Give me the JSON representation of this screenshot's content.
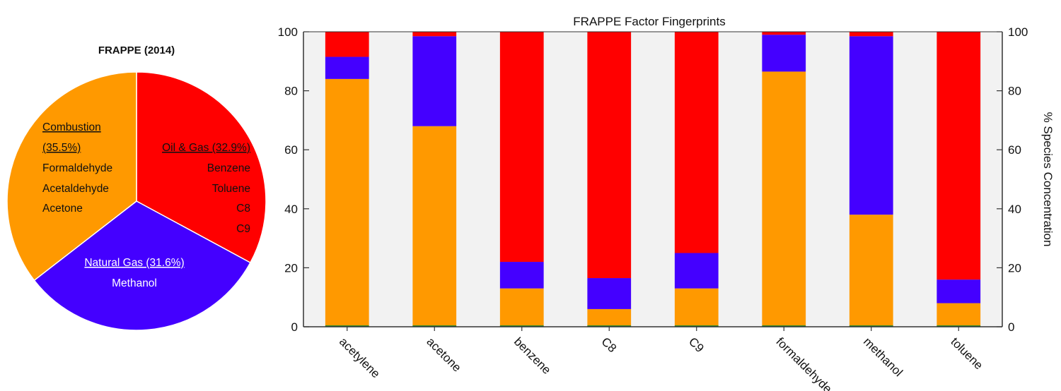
{
  "chart_data": [
    {
      "type": "pie",
      "title": "FRAPPE (2014)",
      "slices": [
        {
          "name": "Oil & Gas (32.9%)",
          "value": 32.9,
          "color": "#ff0000",
          "species": [
            "Benzene",
            "Toluene",
            "C8",
            "C9"
          ]
        },
        {
          "name": "Natural Gas (31.6%)",
          "value": 31.6,
          "color": "#4400ff",
          "species": [
            "Methanol"
          ]
        },
        {
          "name": "Combustion (35.5%)",
          "name_lines": [
            "Combustion",
            "(35.5%)"
          ],
          "value": 35.5,
          "color": "#ff9900",
          "species": [
            "Formaldehyde",
            "Acetaldehyde",
            "Acetone"
          ]
        }
      ]
    },
    {
      "type": "bar",
      "stacked": true,
      "title": "FRAPPE Factor Fingerprints",
      "categories": [
        "acetylene",
        "acetone",
        "benzene",
        "C8",
        "C9",
        "formaldehyde",
        "methanol",
        "toluene"
      ],
      "series": [
        {
          "color": "#ff9900",
          "values": [
            84,
            68,
            13,
            6,
            13,
            86.5,
            38,
            8
          ]
        },
        {
          "color": "#4400ff",
          "values": [
            7.5,
            30.5,
            9,
            10.5,
            12,
            12.5,
            60.5,
            8
          ]
        },
        {
          "color": "#ff0000",
          "values": [
            8.5,
            1.5,
            78,
            83.5,
            75,
            1,
            1.5,
            84
          ]
        }
      ],
      "ylabel": "% Species Concentration",
      "ylim": [
        0,
        100
      ],
      "yticks": [
        0,
        20,
        40,
        60,
        80,
        100
      ],
      "background": "#f2f2f2"
    }
  ]
}
